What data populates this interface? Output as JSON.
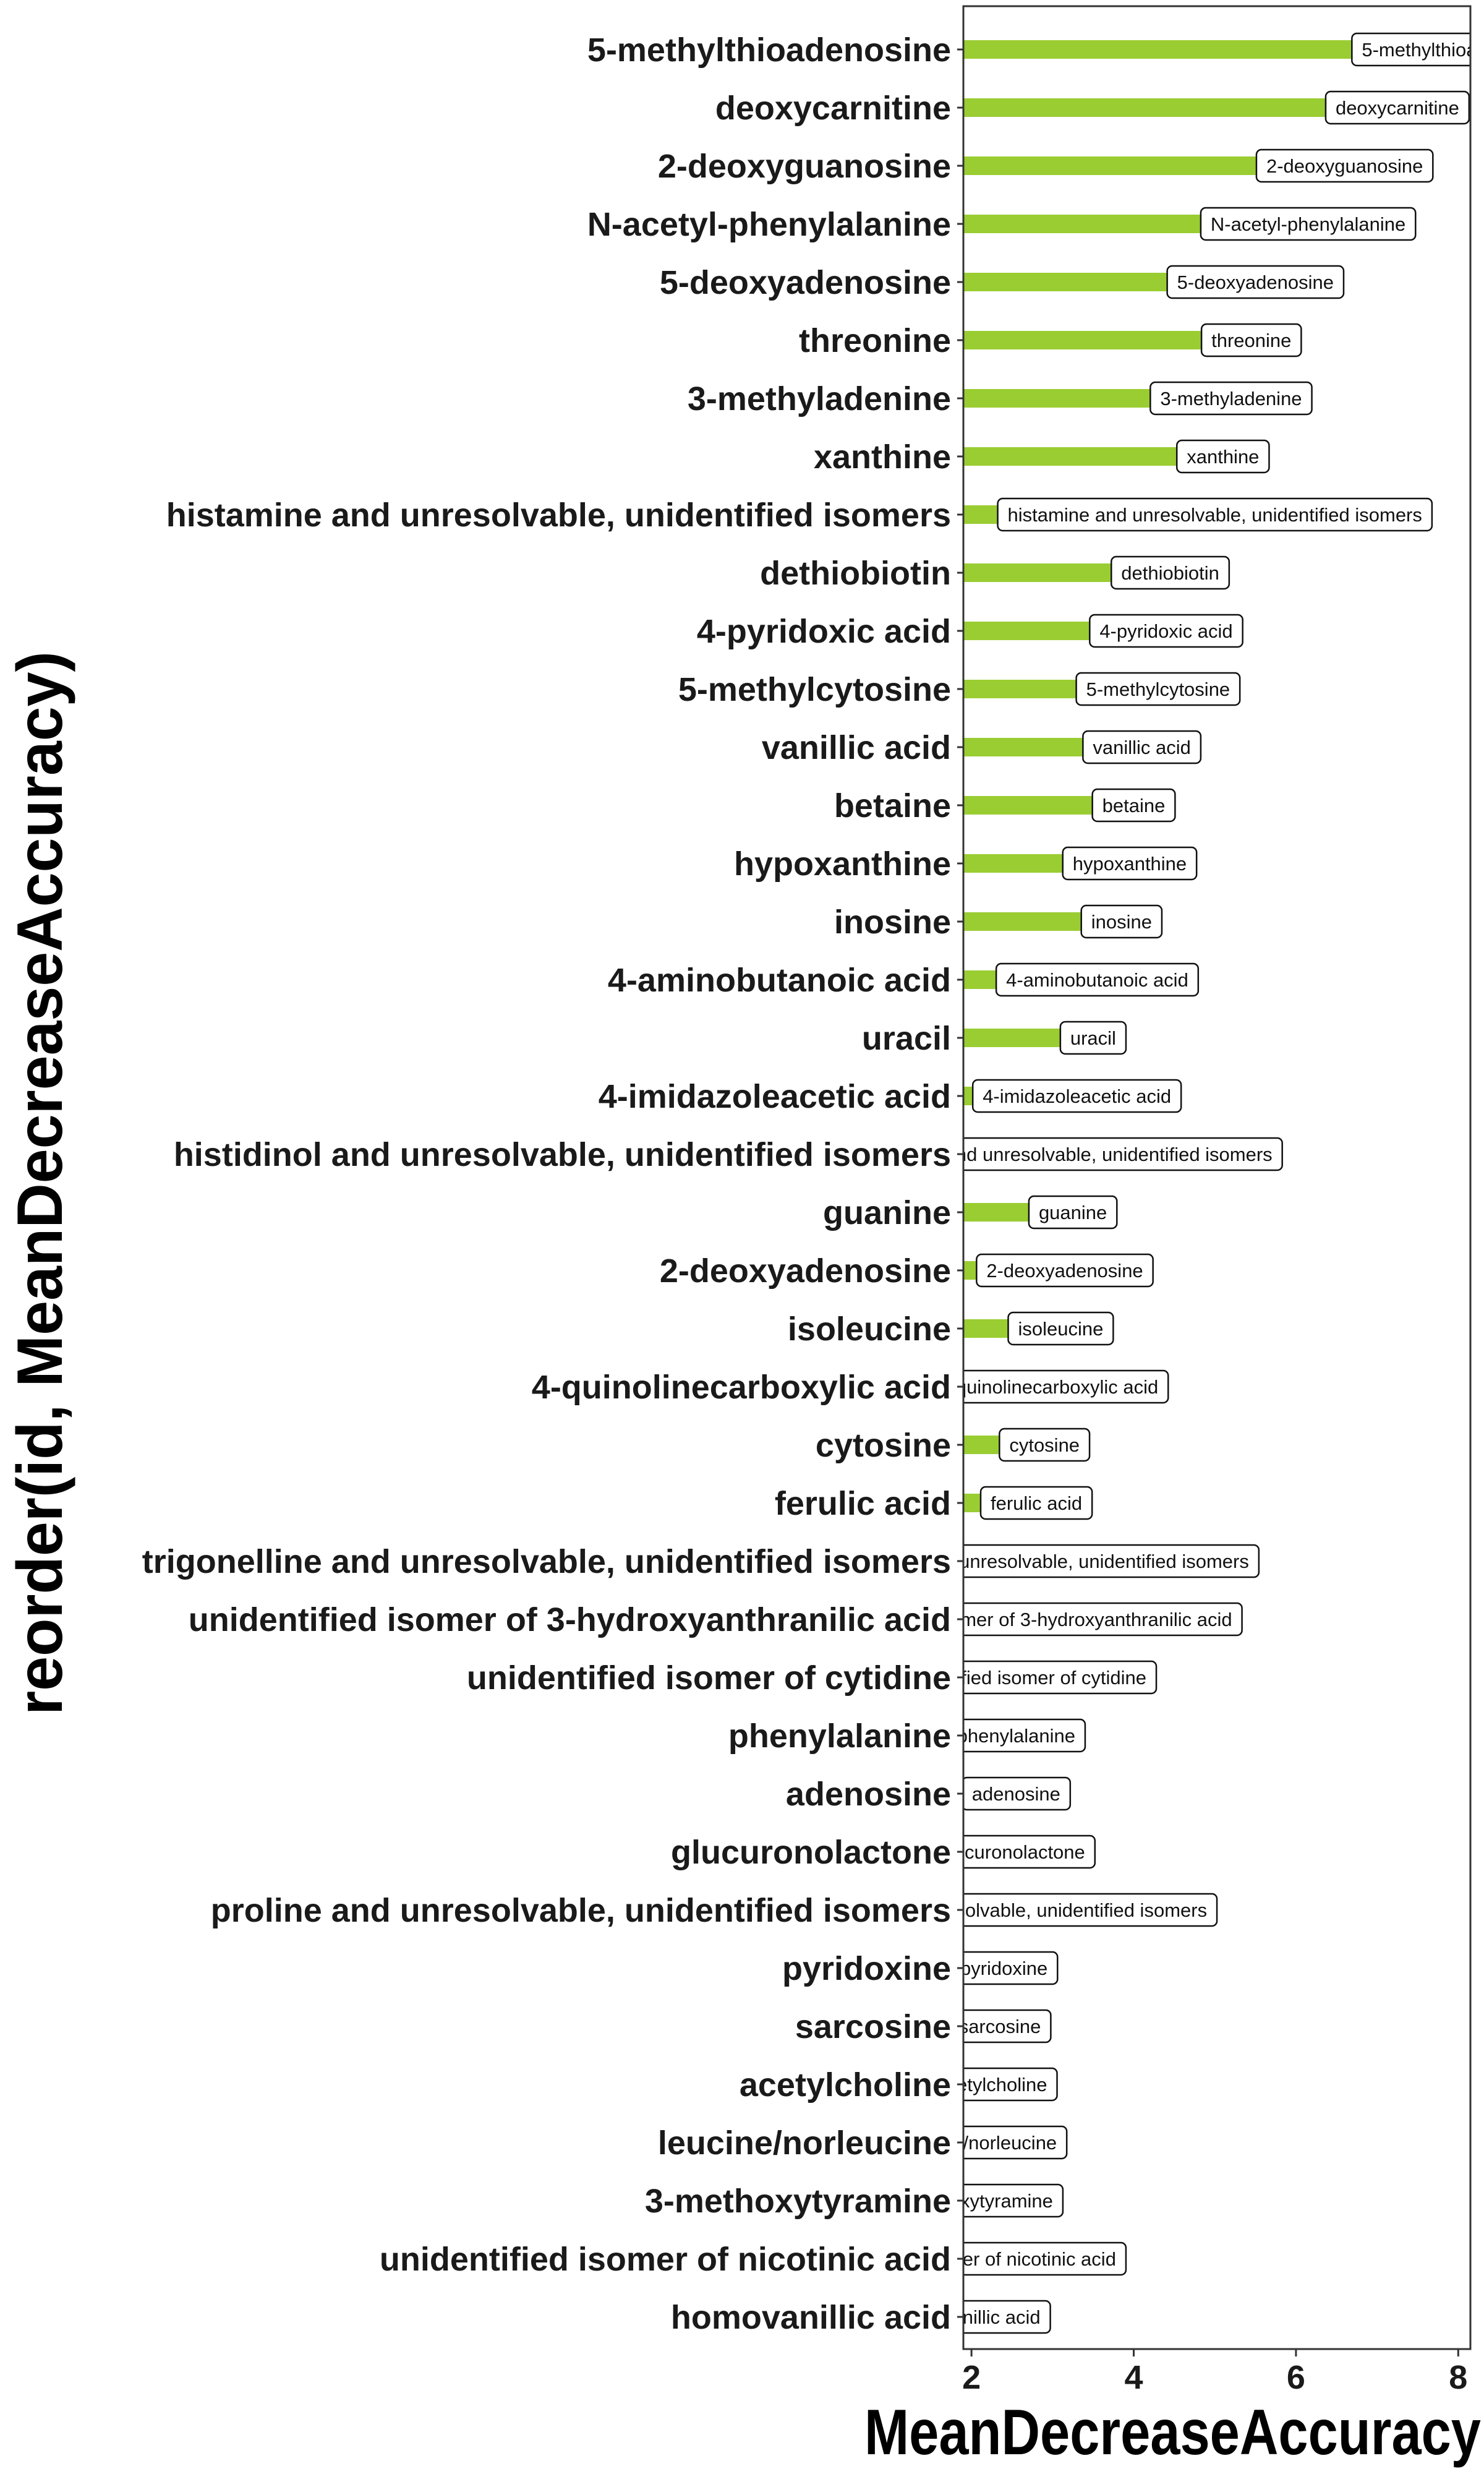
{
  "chart_data": {
    "type": "bar",
    "orientation": "horizontal",
    "xlabel": "MeanDecreaseAccuracy",
    "ylabel": "reorder(id, MeanDecreaseAccuracy)",
    "xlim": [
      1.9,
      8.15
    ],
    "xticks": [
      2,
      4,
      6,
      8
    ],
    "grid": false,
    "bar_color": "#9ACD32",
    "categories": [
      "5-methylthioadenosine",
      "deoxycarnitine",
      "2-deoxyguanosine",
      "N-acetyl-phenylalanine",
      "5-deoxyadenosine",
      "threonine",
      "3-methyladenine",
      "xanthine",
      "histamine and unresolvable, unidentified isomers",
      "dethiobiotin",
      "4-pyridoxic acid",
      "5-methylcytosine",
      "vanillic acid",
      "betaine",
      "hypoxanthine",
      "inosine",
      "4-aminobutanoic acid",
      "uracil",
      "4-imidazoleacetic acid",
      "histidinol and unresolvable, unidentified isomers",
      "guanine",
      "2-deoxyadenosine",
      "isoleucine",
      "4-quinolinecarboxylic acid",
      "cytosine",
      "ferulic acid",
      "trigonelline and unresolvable, unidentified isomers",
      "unidentified isomer of 3-hydroxyanthranilic acid",
      "unidentified isomer of cytidine",
      "phenylalanine",
      "adenosine",
      "glucuronolactone",
      "proline and unresolvable, unidentified isomers",
      "pyridoxine",
      "sarcosine",
      "acetylcholine",
      "leucine/norleucine",
      "3-methoxytyramine",
      "unidentified isomer of nicotinic acid",
      "homovanillic acid"
    ],
    "values": [
      8.0,
      7.25,
      6.6,
      6.15,
      5.5,
      5.45,
      5.2,
      5.1,
      5.0,
      4.45,
      4.4,
      4.3,
      4.1,
      4.0,
      3.95,
      3.85,
      3.55,
      3.5,
      3.3,
      3.2,
      3.25,
      3.15,
      3.1,
      2.95,
      2.9,
      2.8,
      2.8,
      2.75,
      2.6,
      2.55,
      2.55,
      2.5,
      2.5,
      2.4,
      2.35,
      2.25,
      2.1,
      2.0,
      1.95,
      1.95
    ]
  }
}
